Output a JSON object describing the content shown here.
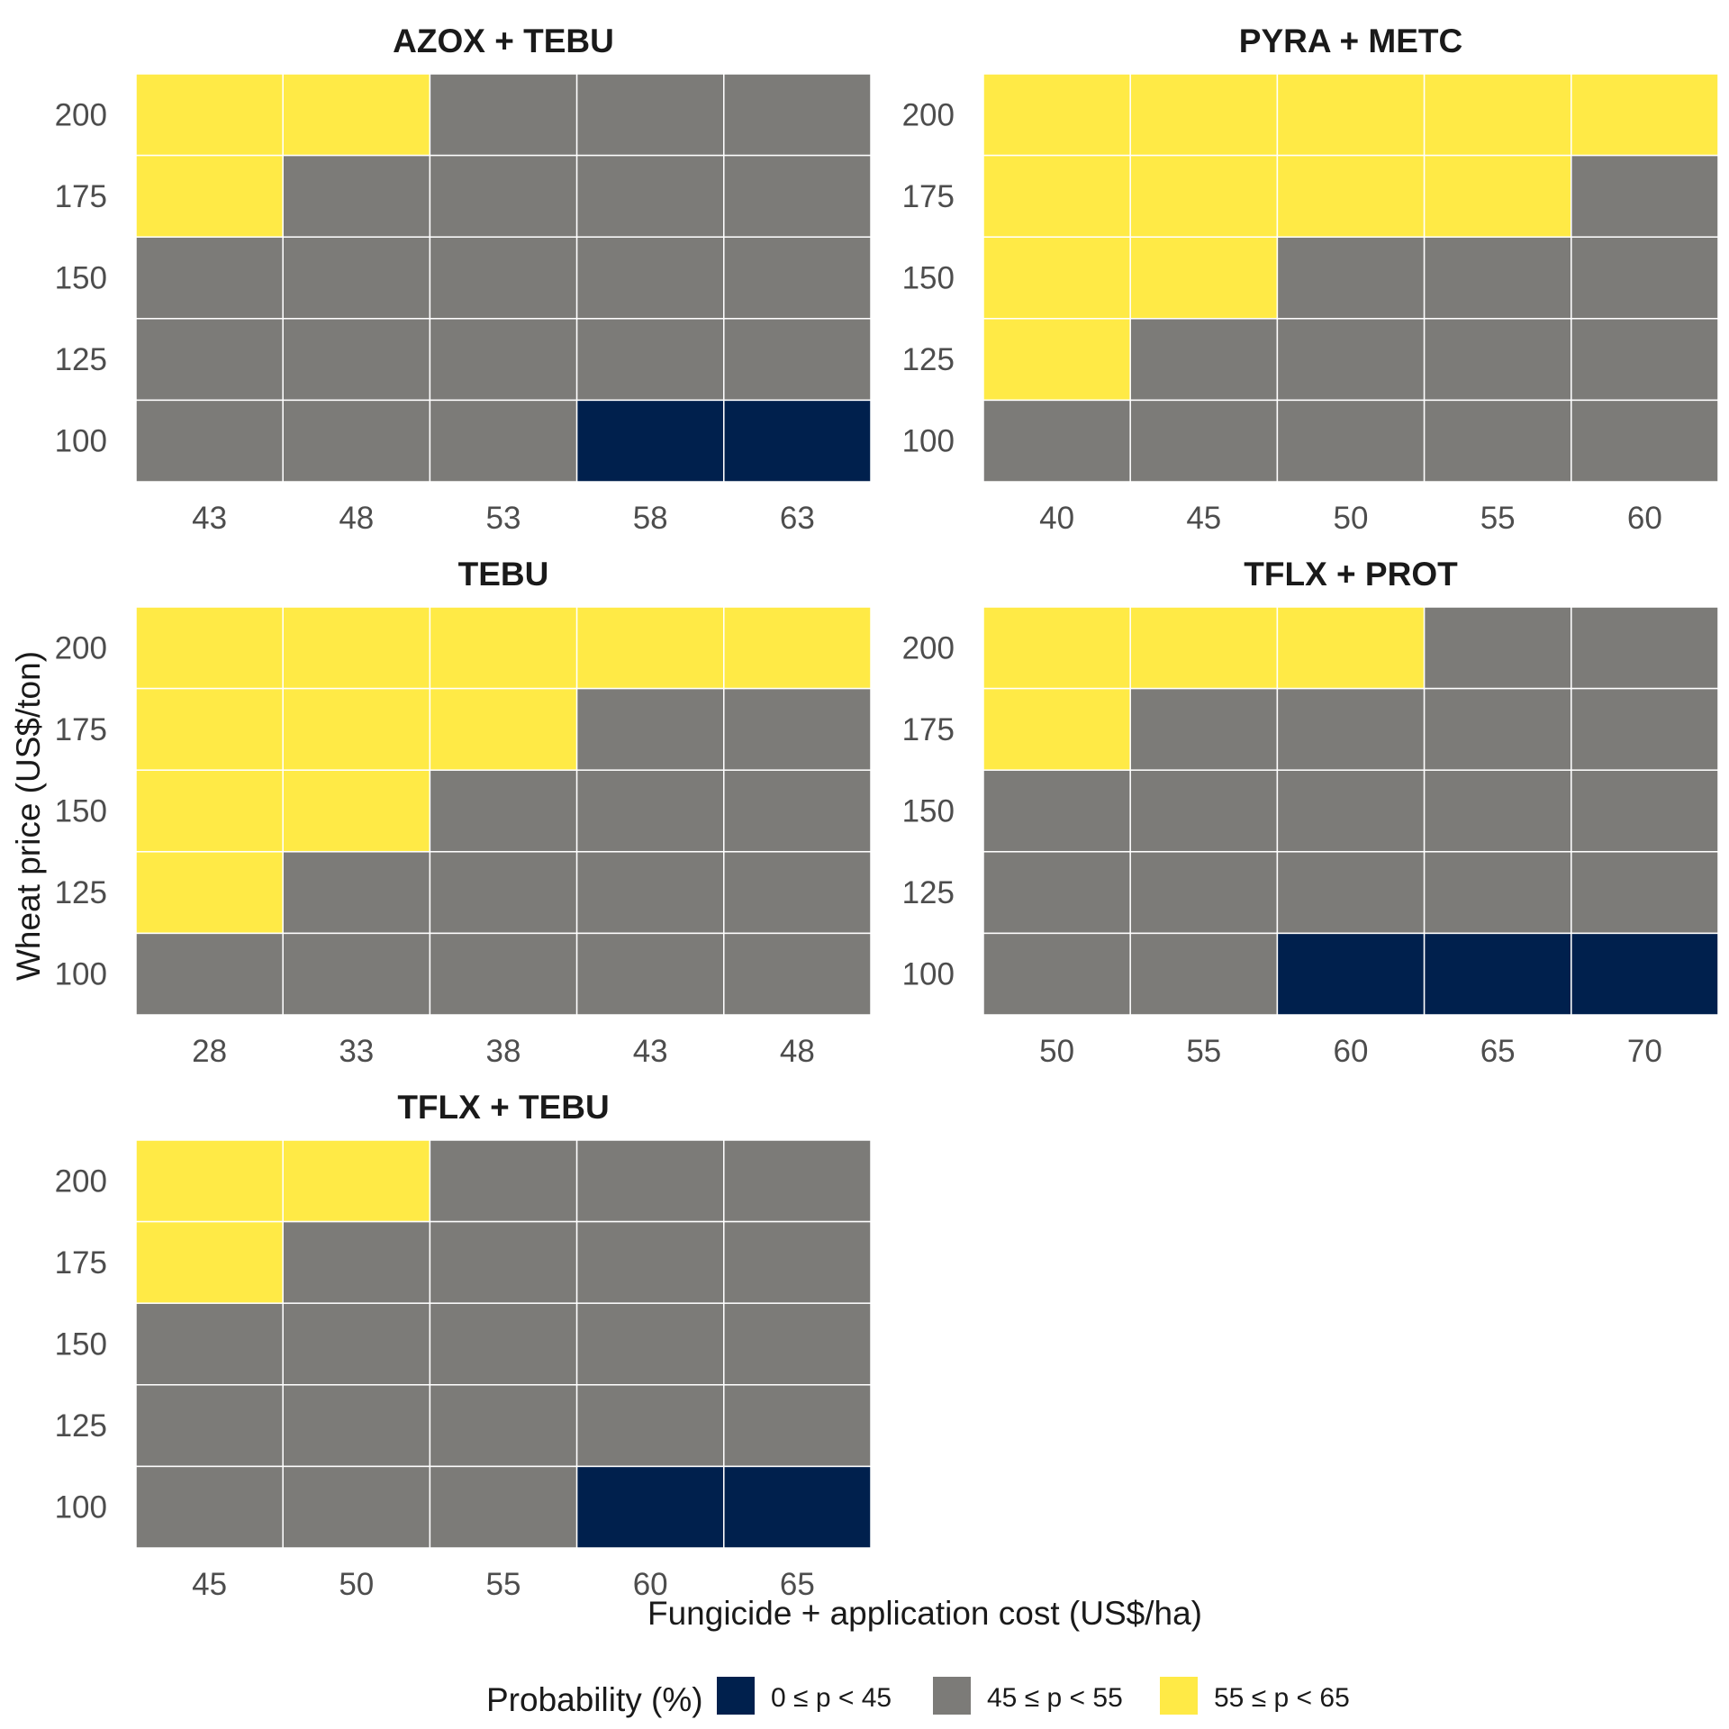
{
  "chart_data": {
    "type": "heatmap",
    "xlabel": "Fungicide + application cost (US$/ha)",
    "ylabel": "Wheat price (US$/ton)",
    "y_categories": [
      "100",
      "125",
      "150",
      "175",
      "200"
    ],
    "legend": {
      "title": "Probability (%)",
      "position": "bottom",
      "classes": [
        {
          "label": "0 ≤ p < 45",
          "color": "#00204D"
        },
        {
          "label": "45 ≤ p < 55",
          "color": "#7C7B78"
        },
        {
          "label": "55 ≤ p < 65",
          "color": "#FFEA46"
        }
      ]
    },
    "panels": [
      {
        "title": "AZOX + TEBU",
        "x_categories": [
          "43",
          "48",
          "53",
          "58",
          "63"
        ],
        "cells_top_to_bottom": [
          [
            2,
            2,
            1,
            1,
            1
          ],
          [
            2,
            1,
            1,
            1,
            1
          ],
          [
            1,
            1,
            1,
            1,
            1
          ],
          [
            1,
            1,
            1,
            1,
            1
          ],
          [
            1,
            1,
            1,
            0,
            0
          ]
        ]
      },
      {
        "title": "PYRA + METC",
        "x_categories": [
          "40",
          "45",
          "50",
          "55",
          "60"
        ],
        "cells_top_to_bottom": [
          [
            2,
            2,
            2,
            2,
            2
          ],
          [
            2,
            2,
            2,
            2,
            1
          ],
          [
            2,
            2,
            1,
            1,
            1
          ],
          [
            2,
            1,
            1,
            1,
            1
          ],
          [
            1,
            1,
            1,
            1,
            1
          ]
        ]
      },
      {
        "title": "TEBU",
        "x_categories": [
          "28",
          "33",
          "38",
          "43",
          "48"
        ],
        "cells_top_to_bottom": [
          [
            2,
            2,
            2,
            2,
            2
          ],
          [
            2,
            2,
            2,
            1,
            1
          ],
          [
            2,
            2,
            1,
            1,
            1
          ],
          [
            2,
            1,
            1,
            1,
            1
          ],
          [
            1,
            1,
            1,
            1,
            1
          ]
        ]
      },
      {
        "title": "TFLX + PROT",
        "x_categories": [
          "50",
          "55",
          "60",
          "65",
          "70"
        ],
        "cells_top_to_bottom": [
          [
            2,
            2,
            2,
            1,
            1
          ],
          [
            2,
            1,
            1,
            1,
            1
          ],
          [
            1,
            1,
            1,
            1,
            1
          ],
          [
            1,
            1,
            1,
            1,
            1
          ],
          [
            1,
            1,
            0,
            0,
            0
          ]
        ]
      },
      {
        "title": "TFLX + TEBU",
        "x_categories": [
          "45",
          "50",
          "55",
          "60",
          "65"
        ],
        "cells_top_to_bottom": [
          [
            2,
            2,
            1,
            1,
            1
          ],
          [
            2,
            1,
            1,
            1,
            1
          ],
          [
            1,
            1,
            1,
            1,
            1
          ],
          [
            1,
            1,
            1,
            1,
            1
          ],
          [
            1,
            1,
            1,
            0,
            0
          ]
        ]
      }
    ]
  }
}
